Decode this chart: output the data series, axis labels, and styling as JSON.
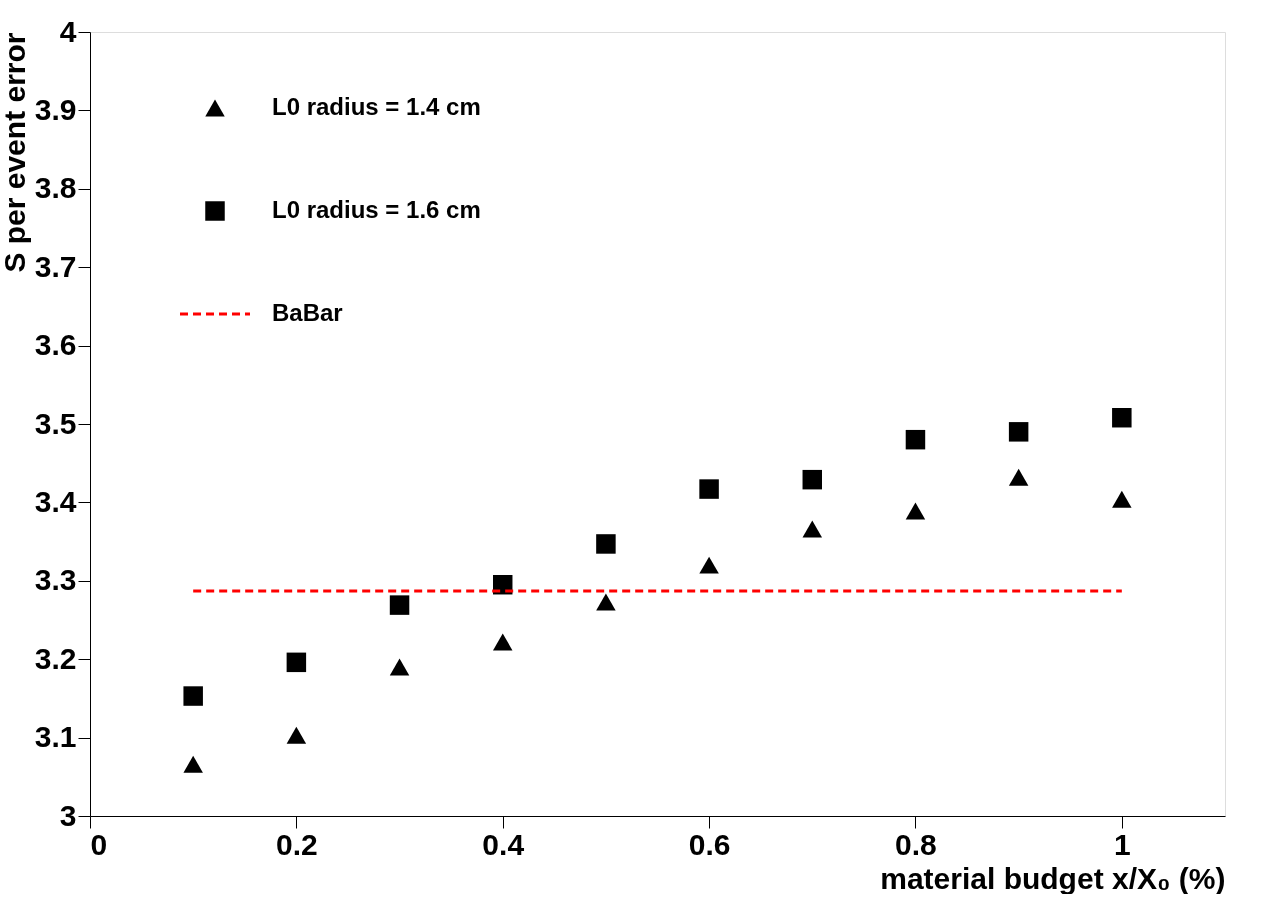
{
  "chart_data": {
    "type": "scatter",
    "xlabel": "material budget x/X₀ (%)",
    "ylabel": "S per event error",
    "x": [
      0.1,
      0.2,
      0.3,
      0.4,
      0.5,
      0.6,
      0.7,
      0.8,
      0.9,
      1.0
    ],
    "series": [
      {
        "name": "L0 radius = 1.4 cm",
        "color": "#000000",
        "marker": "triangle",
        "values": [
          3.066,
          3.103,
          3.19,
          3.222,
          3.273,
          3.32,
          3.366,
          3.389,
          3.432,
          3.404
        ]
      },
      {
        "name": "L0 radius = 1.6 cm",
        "color": "#000000",
        "marker": "square",
        "values": [
          3.153,
          3.196,
          3.269,
          3.295,
          3.347,
          3.417,
          3.429,
          3.48,
          3.49,
          3.508
        ]
      },
      {
        "name": "BaBar",
        "type": "line",
        "color": "#ff0000",
        "line_style": "dashed",
        "x": [
          0.1,
          1.0
        ],
        "values": [
          3.287,
          3.287
        ]
      }
    ],
    "xlim": [
      0,
      1.1
    ],
    "xticks": [
      0,
      0.2,
      0.4,
      0.6,
      0.8,
      1
    ],
    "ylim": [
      3,
      4
    ],
    "yticks": [
      3,
      3.1,
      3.2,
      3.3,
      3.4,
      3.5,
      3.6,
      3.7,
      3.8,
      3.9,
      4
    ],
    "grid": false,
    "legend": "top left"
  }
}
